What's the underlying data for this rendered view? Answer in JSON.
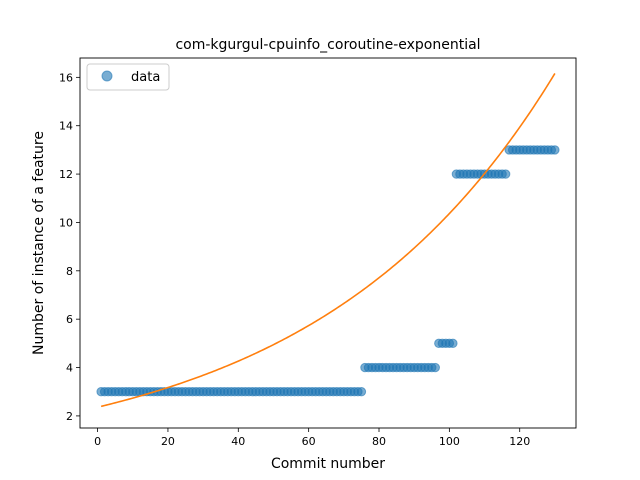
{
  "chart_data": {
    "type": "scatter",
    "title": "com-kgurgul-cpuinfo_coroutine-exponential",
    "xlabel": "Commit number",
    "ylabel": "Number of instance of a feature",
    "xlim": [
      -5,
      136
    ],
    "ylim": [
      1.5,
      16.8
    ],
    "xticks": [
      0,
      20,
      40,
      60,
      80,
      100,
      120
    ],
    "yticks": [
      2,
      4,
      6,
      8,
      10,
      12,
      14,
      16
    ],
    "legend": {
      "placement": "upper-left",
      "entries": [
        "data"
      ]
    },
    "grid": false,
    "series": [
      {
        "name": "data",
        "kind": "scatter",
        "color": "#1f77b4",
        "x_start": 1,
        "y": [
          3,
          3,
          3,
          3,
          3,
          3,
          3,
          3,
          3,
          3,
          3,
          3,
          3,
          3,
          3,
          3,
          3,
          3,
          3,
          3,
          3,
          3,
          3,
          3,
          3,
          3,
          3,
          3,
          3,
          3,
          3,
          3,
          3,
          3,
          3,
          3,
          3,
          3,
          3,
          3,
          3,
          3,
          3,
          3,
          3,
          3,
          3,
          3,
          3,
          3,
          3,
          3,
          3,
          3,
          3,
          3,
          3,
          3,
          3,
          3,
          3,
          3,
          3,
          3,
          3,
          3,
          3,
          3,
          3,
          3,
          3,
          3,
          3,
          3,
          3,
          4,
          4,
          4,
          4,
          4,
          4,
          4,
          4,
          4,
          4,
          4,
          4,
          4,
          4,
          4,
          4,
          4,
          4,
          4,
          4,
          4,
          5,
          5,
          5,
          5,
          5,
          12,
          12,
          12,
          12,
          12,
          12,
          12,
          12,
          12,
          12,
          12,
          12,
          12,
          12,
          12,
          13,
          13,
          13,
          13,
          13,
          13,
          13,
          13,
          13,
          13,
          13,
          13,
          13,
          13
        ]
      },
      {
        "kind": "line",
        "color": "#ff7f0e",
        "fit": {
          "model": "exponential",
          "a": 2.36,
          "b": 0.0148,
          "x_range": [
            1,
            130
          ]
        }
      }
    ]
  }
}
